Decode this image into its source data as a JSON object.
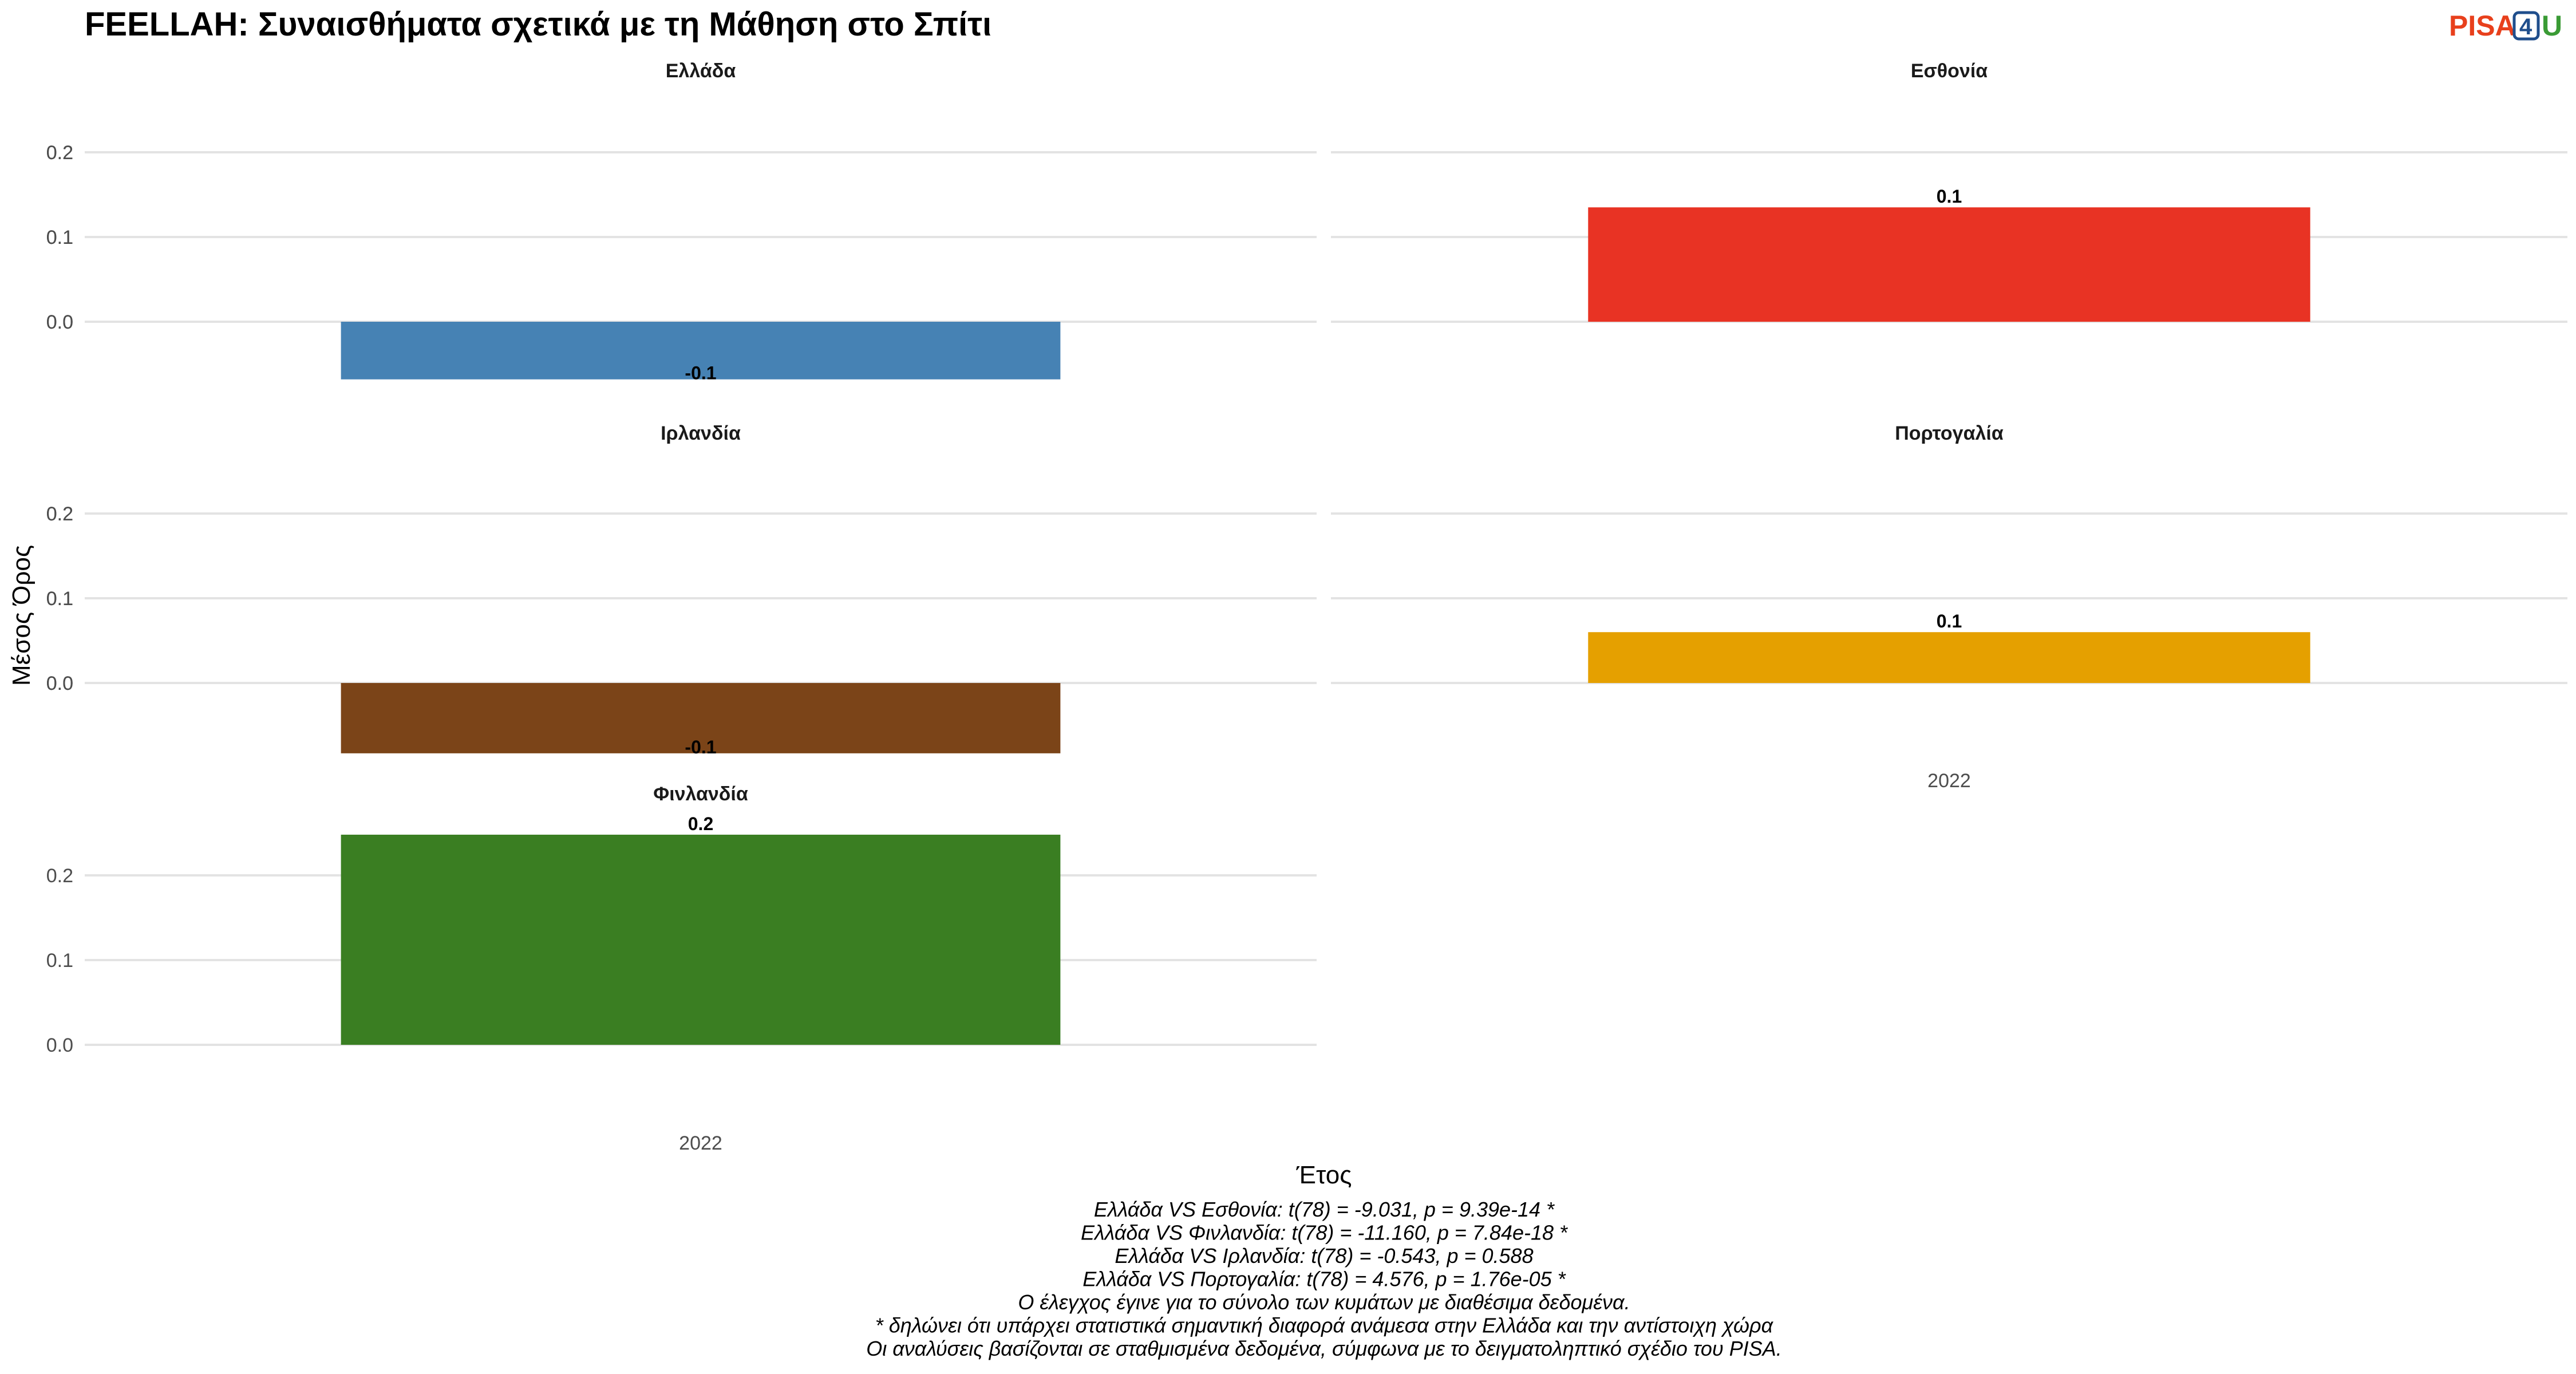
{
  "title": "FEELLAH: Συναισθήματα σχετικά με τη Μάθηση στο Σπίτι",
  "logo": {
    "part1": "PISA",
    "part2": "4",
    "part3": "U",
    "colors": {
      "pisa": "#e8401c",
      "four": "#1f4e8c",
      "u": "#3a9b35"
    }
  },
  "chart_data": {
    "type": "bar",
    "xlabel": "Έτος",
    "ylabel": "Μέσος Όρος",
    "ylim": [
      -0.08,
      0.26
    ],
    "yticks": [
      "0.0",
      "0.1",
      "0.2"
    ],
    "category": "2022",
    "panels": [
      {
        "name": "Ελλάδα",
        "value": -0.068,
        "label": "-0.1",
        "color": "#4682b4",
        "show_xtick": false
      },
      {
        "name": "Εσθονία",
        "value": 0.135,
        "label": "0.1",
        "color": "#e83324",
        "show_xtick": false
      },
      {
        "name": "Ιρλανδία",
        "value": -0.083,
        "label": "-0.1",
        "color": "#7b4418",
        "show_xtick": false
      },
      {
        "name": "Πορτογαλία",
        "value": 0.06,
        "label": "0.1",
        "color": "#e5a000",
        "show_xtick": true
      },
      {
        "name": "Φινλανδία",
        "value": 0.248,
        "label": "0.2",
        "color": "#3a7e22",
        "show_xtick": true
      }
    ]
  },
  "caption_lines": [
    "Ελλάδα VS Εσθονία: t(78) = -9.031, p = 9.39e-14 *",
    "Ελλάδα VS Φινλανδία: t(78) = -11.160, p = 7.84e-18 *",
    "Ελλάδα VS Ιρλανδία: t(78) = -0.543, p = 0.588",
    "Ελλάδα VS Πορτογαλία: t(78) = 4.576, p = 1.76e-05 *",
    "Ο έλεγχος έγινε για το σύνολο των κυμάτων με διαθέσιμα δεδομένα.",
    "* δηλώνει ότι υπάρχει στατιστικά σημαντική διαφορά ανάμεσα στην Ελλάδα και την αντίστοιχη χώρα",
    "Οι αναλύσεις βασίζονται σε σταθμισμένα δεδομένα, σύμφωνα με το δειγματοληπτικό σχέδιο του PISA."
  ]
}
